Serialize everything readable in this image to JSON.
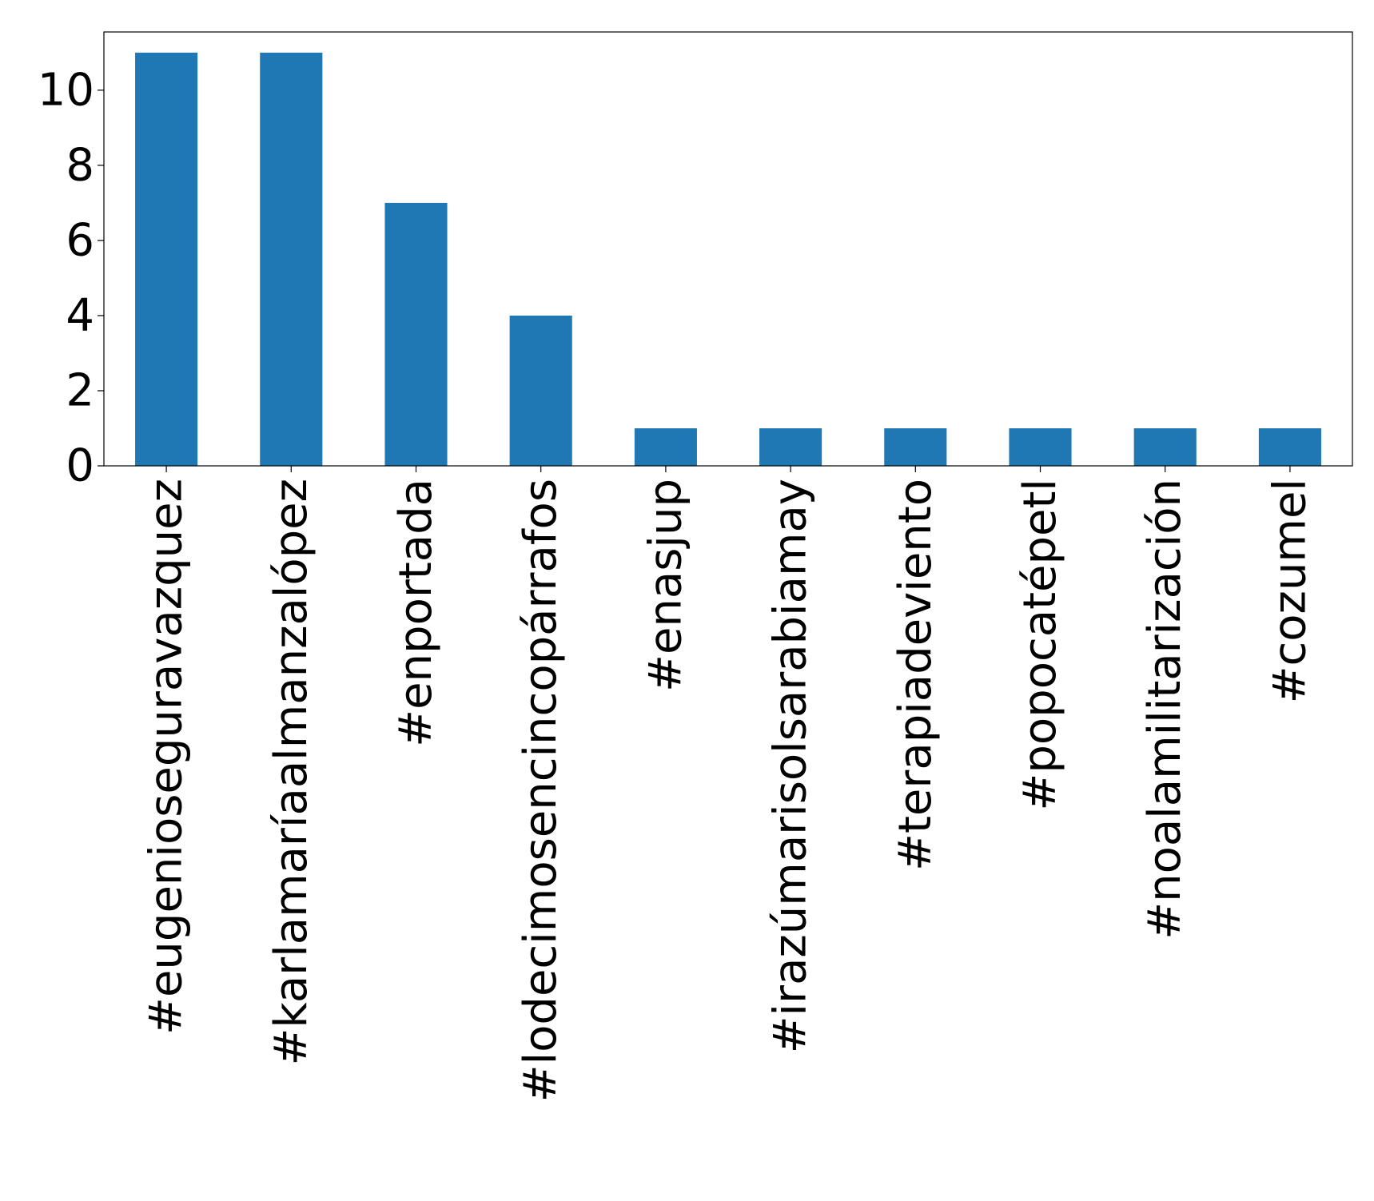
{
  "chart_data": {
    "type": "bar",
    "title": "",
    "xlabel": "",
    "ylabel": "",
    "categories": [
      "#eugenioseguravazquez",
      "#karlamaríaalmanzalópez",
      "#enportada",
      "#lodecimosencincopárrafos",
      "#enasjup",
      "#irazúmarisolsarabiamay",
      "#terapiadeviento",
      "#popocatépetl",
      "#noalamilitarización",
      "#cozumel"
    ],
    "values": [
      11,
      11,
      7,
      4,
      1,
      1,
      1,
      1,
      1,
      1
    ],
    "ylim": [
      0,
      11.55
    ],
    "yticks": [
      0,
      2,
      4,
      6,
      8,
      10
    ],
    "grid": false,
    "legend": "none",
    "bar_color": "#1f77b4"
  }
}
